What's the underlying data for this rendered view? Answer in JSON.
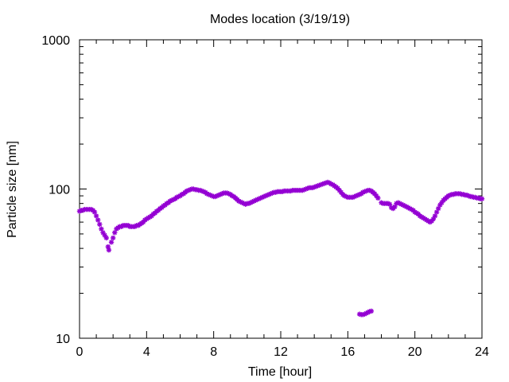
{
  "chart_data": {
    "type": "scatter",
    "title": "Modes location (3/19/19)",
    "xlabel": "Time [hour]",
    "ylabel": "Particle size [nm]",
    "xlim": [
      0,
      24
    ],
    "ylim": [
      10,
      1000
    ],
    "yscale": "log",
    "x_ticks": [
      0,
      4,
      8,
      12,
      16,
      20,
      24
    ],
    "x_tick_labels": [
      "0",
      "4",
      "8",
      "12",
      "16",
      "20",
      "24"
    ],
    "y_ticks": [
      10,
      100,
      1000
    ],
    "y_tick_labels": [
      "10",
      "100",
      "1000"
    ],
    "grid": false,
    "marker": "*",
    "series": [
      {
        "color": "#9400d3",
        "points": [
          [
            0.0,
            71
          ],
          [
            0.1,
            72
          ],
          [
            0.2,
            72
          ],
          [
            0.3,
            73
          ],
          [
            0.4,
            73
          ],
          [
            0.5,
            73
          ],
          [
            0.6,
            73
          ],
          [
            0.7,
            73
          ],
          [
            0.8,
            72
          ],
          [
            0.9,
            70
          ],
          [
            1.0,
            66
          ],
          [
            1.1,
            62
          ],
          [
            1.2,
            58
          ],
          [
            1.3,
            54
          ],
          [
            1.4,
            51
          ],
          [
            1.5,
            49
          ],
          [
            1.6,
            47
          ],
          [
            1.7,
            41
          ],
          [
            1.75,
            39
          ],
          [
            1.9,
            44
          ],
          [
            2.0,
            47
          ],
          [
            2.1,
            51
          ],
          [
            2.2,
            54
          ],
          [
            2.3,
            55
          ],
          [
            2.4,
            56
          ],
          [
            2.5,
            56
          ],
          [
            2.6,
            57
          ],
          [
            2.7,
            57
          ],
          [
            2.8,
            57
          ],
          [
            2.9,
            57
          ],
          [
            3.0,
            56
          ],
          [
            3.1,
            56
          ],
          [
            3.2,
            56
          ],
          [
            3.3,
            56
          ],
          [
            3.4,
            57
          ],
          [
            3.5,
            57
          ],
          [
            3.6,
            58
          ],
          [
            3.7,
            59
          ],
          [
            3.8,
            60
          ],
          [
            3.9,
            62
          ],
          [
            4.0,
            63
          ],
          [
            4.1,
            64
          ],
          [
            4.2,
            65
          ],
          [
            4.3,
            66
          ],
          [
            4.4,
            68
          ],
          [
            4.5,
            69
          ],
          [
            4.6,
            71
          ],
          [
            4.7,
            72
          ],
          [
            4.8,
            74
          ],
          [
            4.9,
            75
          ],
          [
            5.0,
            77
          ],
          [
            5.1,
            78
          ],
          [
            5.2,
            80
          ],
          [
            5.3,
            81
          ],
          [
            5.4,
            83
          ],
          [
            5.5,
            84
          ],
          [
            5.6,
            85
          ],
          [
            5.7,
            86
          ],
          [
            5.8,
            88
          ],
          [
            5.9,
            89
          ],
          [
            6.0,
            90
          ],
          [
            6.1,
            92
          ],
          [
            6.2,
            93
          ],
          [
            6.3,
            95
          ],
          [
            6.4,
            97
          ],
          [
            6.5,
            98
          ],
          [
            6.6,
            99
          ],
          [
            6.7,
            100
          ],
          [
            6.8,
            100
          ],
          [
            6.9,
            99
          ],
          [
            7.0,
            99
          ],
          [
            7.1,
            98
          ],
          [
            7.2,
            98
          ],
          [
            7.3,
            97
          ],
          [
            7.4,
            96
          ],
          [
            7.5,
            95
          ],
          [
            7.6,
            93
          ],
          [
            7.7,
            92
          ],
          [
            7.8,
            91
          ],
          [
            7.9,
            90
          ],
          [
            8.0,
            89
          ],
          [
            8.1,
            89
          ],
          [
            8.2,
            90
          ],
          [
            8.3,
            91
          ],
          [
            8.4,
            92
          ],
          [
            8.5,
            93
          ],
          [
            8.6,
            94
          ],
          [
            8.7,
            94
          ],
          [
            8.8,
            94
          ],
          [
            8.9,
            93
          ],
          [
            9.0,
            92
          ],
          [
            9.1,
            90
          ],
          [
            9.2,
            89
          ],
          [
            9.3,
            87
          ],
          [
            9.4,
            85
          ],
          [
            9.5,
            83
          ],
          [
            9.6,
            82
          ],
          [
            9.7,
            81
          ],
          [
            9.8,
            80
          ],
          [
            9.9,
            79
          ],
          [
            10.0,
            80
          ],
          [
            10.1,
            80
          ],
          [
            10.2,
            81
          ],
          [
            10.3,
            82
          ],
          [
            10.4,
            83
          ],
          [
            10.5,
            84
          ],
          [
            10.6,
            85
          ],
          [
            10.7,
            86
          ],
          [
            10.8,
            87
          ],
          [
            10.9,
            88
          ],
          [
            11.0,
            89
          ],
          [
            11.1,
            90
          ],
          [
            11.2,
            91
          ],
          [
            11.3,
            92
          ],
          [
            11.4,
            93
          ],
          [
            11.5,
            94
          ],
          [
            11.6,
            95
          ],
          [
            11.7,
            95
          ],
          [
            11.8,
            96
          ],
          [
            11.9,
            96
          ],
          [
            12.0,
            96
          ],
          [
            12.1,
            96
          ],
          [
            12.2,
            97
          ],
          [
            12.3,
            97
          ],
          [
            12.4,
            97
          ],
          [
            12.5,
            97
          ],
          [
            12.6,
            97
          ],
          [
            12.7,
            98
          ],
          [
            12.8,
            98
          ],
          [
            12.9,
            98
          ],
          [
            13.0,
            98
          ],
          [
            13.1,
            98
          ],
          [
            13.2,
            98
          ],
          [
            13.3,
            98
          ],
          [
            13.4,
            99
          ],
          [
            13.5,
            100
          ],
          [
            13.6,
            101
          ],
          [
            13.7,
            102
          ],
          [
            13.8,
            102
          ],
          [
            13.9,
            102
          ],
          [
            14.0,
            103
          ],
          [
            14.1,
            104
          ],
          [
            14.2,
            105
          ],
          [
            14.3,
            106
          ],
          [
            14.4,
            107
          ],
          [
            14.5,
            108
          ],
          [
            14.6,
            109
          ],
          [
            14.7,
            110
          ],
          [
            14.8,
            111
          ],
          [
            14.9,
            110
          ],
          [
            15.0,
            108
          ],
          [
            15.1,
            107
          ],
          [
            15.2,
            105
          ],
          [
            15.3,
            103
          ],
          [
            15.4,
            101
          ],
          [
            15.5,
            98
          ],
          [
            15.6,
            95
          ],
          [
            15.7,
            92
          ],
          [
            15.8,
            90
          ],
          [
            15.9,
            89
          ],
          [
            16.0,
            88
          ],
          [
            16.1,
            88
          ],
          [
            16.2,
            88
          ],
          [
            16.3,
            88
          ],
          [
            16.4,
            89
          ],
          [
            16.5,
            90
          ],
          [
            16.6,
            91
          ],
          [
            16.7,
            92
          ],
          [
            16.8,
            93
          ],
          [
            16.9,
            95
          ],
          [
            17.0,
            96
          ],
          [
            17.1,
            97
          ],
          [
            17.2,
            98
          ],
          [
            17.3,
            98
          ],
          [
            17.4,
            97
          ],
          [
            17.5,
            95
          ],
          [
            17.6,
            93
          ],
          [
            17.7,
            90
          ],
          [
            17.8,
            87
          ],
          [
            18.0,
            81
          ],
          [
            18.1,
            80
          ],
          [
            18.2,
            80
          ],
          [
            18.3,
            80
          ],
          [
            18.4,
            80
          ],
          [
            18.5,
            79
          ],
          [
            18.6,
            75
          ],
          [
            18.7,
            74
          ],
          [
            18.8,
            76
          ],
          [
            18.9,
            80
          ],
          [
            19.0,
            81
          ],
          [
            19.1,
            80
          ],
          [
            19.2,
            79
          ],
          [
            19.3,
            78
          ],
          [
            19.4,
            77
          ],
          [
            19.5,
            76
          ],
          [
            19.6,
            75
          ],
          [
            19.7,
            74
          ],
          [
            19.8,
            73
          ],
          [
            19.9,
            72
          ],
          [
            20.0,
            70
          ],
          [
            20.1,
            69
          ],
          [
            20.2,
            68
          ],
          [
            20.3,
            66
          ],
          [
            20.4,
            65
          ],
          [
            20.5,
            64
          ],
          [
            20.6,
            63
          ],
          [
            20.7,
            62
          ],
          [
            20.8,
            61
          ],
          [
            20.9,
            60
          ],
          [
            21.0,
            61
          ],
          [
            21.1,
            63
          ],
          [
            21.2,
            66
          ],
          [
            21.3,
            70
          ],
          [
            21.4,
            74
          ],
          [
            21.5,
            78
          ],
          [
            21.6,
            81
          ],
          [
            21.7,
            84
          ],
          [
            21.8,
            86
          ],
          [
            21.9,
            88
          ],
          [
            22.0,
            90
          ],
          [
            22.1,
            91
          ],
          [
            22.2,
            92
          ],
          [
            22.3,
            92
          ],
          [
            22.4,
            93
          ],
          [
            22.5,
            93
          ],
          [
            22.6,
            93
          ],
          [
            22.7,
            93
          ],
          [
            22.8,
            92
          ],
          [
            22.9,
            92
          ],
          [
            23.0,
            91
          ],
          [
            23.1,
            91
          ],
          [
            23.2,
            90
          ],
          [
            23.3,
            89
          ],
          [
            23.4,
            89
          ],
          [
            23.5,
            88
          ],
          [
            23.6,
            88
          ],
          [
            23.7,
            87
          ],
          [
            23.8,
            87
          ],
          [
            23.9,
            86
          ],
          [
            24.0,
            86
          ],
          [
            16.7,
            14.5
          ],
          [
            16.8,
            14.4
          ],
          [
            16.9,
            14.4
          ],
          [
            17.0,
            14.5
          ],
          [
            17.1,
            14.7
          ],
          [
            17.2,
            14.9
          ],
          [
            17.3,
            15.1
          ],
          [
            17.4,
            15.2
          ]
        ]
      }
    ]
  }
}
